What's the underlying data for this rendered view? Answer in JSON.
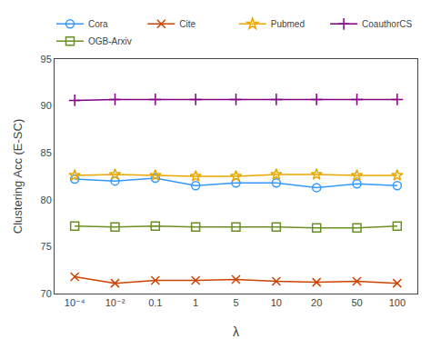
{
  "chart_data": {
    "type": "line",
    "categories": [
      "10⁻⁴",
      "10⁻²",
      "0.1",
      "1",
      "5",
      "10",
      "20",
      "50",
      "100"
    ],
    "series": [
      {
        "name": "Cora",
        "color": "#3399FF",
        "marker": "circle",
        "values": [
          82.2,
          82.0,
          82.3,
          81.5,
          81.8,
          81.8,
          81.3,
          81.7,
          81.5
        ]
      },
      {
        "name": "Cite",
        "color": "#CC4400",
        "marker": "x",
        "values": [
          71.8,
          71.1,
          71.4,
          71.4,
          71.5,
          71.3,
          71.2,
          71.3,
          71.1
        ]
      },
      {
        "name": "Pubmed",
        "color": "#E8A800",
        "marker": "star",
        "values": [
          82.6,
          82.7,
          82.6,
          82.5,
          82.5,
          82.7,
          82.7,
          82.6,
          82.6
        ]
      },
      {
        "name": "CoauthorCS",
        "color": "#800080",
        "marker": "cross",
        "values": [
          90.6,
          90.7,
          90.7,
          90.7,
          90.7,
          90.7,
          90.7,
          90.7,
          90.7
        ]
      },
      {
        "name": "OGB-Arxiv",
        "color": "#6B8E23",
        "marker": "square",
        "values": [
          77.2,
          77.1,
          77.2,
          77.1,
          77.1,
          77.1,
          77.0,
          77.0,
          77.2
        ]
      }
    ],
    "xlabel": "λ",
    "ylabel": "Clustering Acc (E-SC)",
    "ylim": [
      70,
      95
    ],
    "yticks": [
      70,
      75,
      80,
      85,
      90,
      95
    ],
    "grid": false,
    "legend": "upper right"
  }
}
